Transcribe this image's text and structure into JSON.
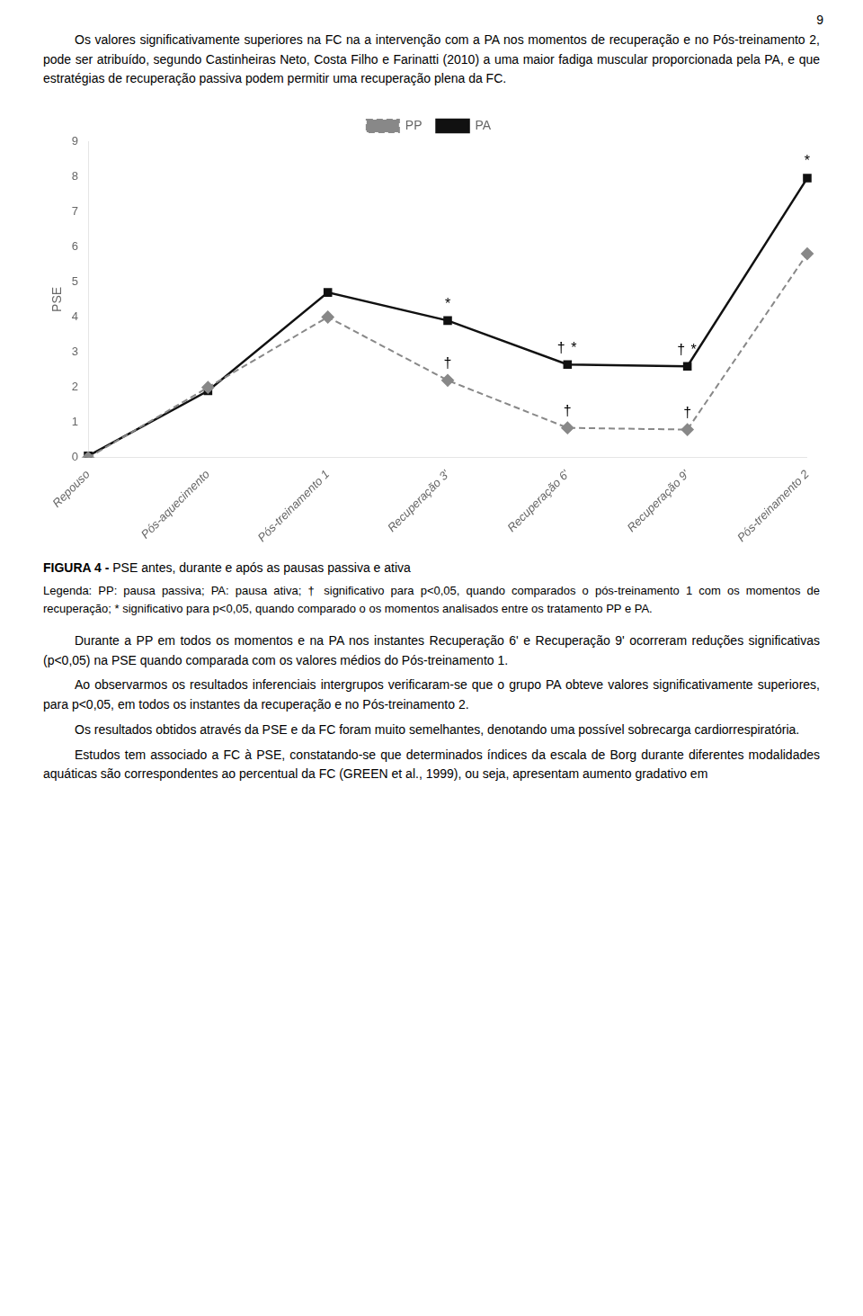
{
  "page_number": "9",
  "paragraphs_before": [
    "Os valores significativamente superiores na FC na a intervenção com a PA nos momentos de recuperação e no Pós-treinamento 2, pode ser atribuído, segundo Castinheiras Neto, Costa Filho e Farinatti (2010) a uma maior fadiga muscular proporcionada pela PA, e que estratégias de recuperação passiva podem permitir uma recuperação plena da FC."
  ],
  "chart_data": {
    "type": "line",
    "categories": [
      "Repouso",
      "Pós-aquecimento",
      "Pós-treinamento 1",
      "Recuperação 3'",
      "Recuperação 6'",
      "Recuperação 9'",
      "Pós-treinamento 2"
    ],
    "series": [
      {
        "name": "PP",
        "color": "#888888",
        "line_style": "dashed",
        "marker": "diamond",
        "values": [
          0.0,
          2.0,
          4.0,
          2.2,
          0.85,
          0.8,
          5.8
        ]
      },
      {
        "name": "PA",
        "color": "#111111",
        "line_style": "solid",
        "marker": "square",
        "values": [
          0.05,
          1.9,
          4.7,
          3.9,
          2.65,
          2.6,
          7.95
        ]
      }
    ],
    "ylabel": "PSE",
    "ylim": [
      0,
      9
    ],
    "yticks": [
      0,
      1,
      2,
      3,
      4,
      5,
      6,
      7,
      8,
      9
    ],
    "grid": false,
    "legend": "top",
    "annotations": [
      {
        "category": "Recuperação 3'",
        "series": "PP",
        "text": "†"
      },
      {
        "category": "Recuperação 3'",
        "series": "PA",
        "text": "*"
      },
      {
        "category": "Recuperação 6'",
        "series": "PP",
        "text": "†"
      },
      {
        "category": "Recuperação 6'",
        "series": "PA",
        "text": "†"
      },
      {
        "category": "Recuperação 6'",
        "series": "PA",
        "text": "*"
      },
      {
        "category": "Recuperação 9'",
        "series": "PP",
        "text": "†"
      },
      {
        "category": "Recuperação 9'",
        "series": "PA",
        "text": "†"
      },
      {
        "category": "Recuperação 9'",
        "series": "PA",
        "text": "*"
      },
      {
        "category": "Pós-treinamento 2",
        "series": "PA",
        "text": "*"
      }
    ]
  },
  "caption_label": "FIGURA 4 -",
  "caption": "PSE antes, durante e após as pausas passiva e ativa",
  "note": "Legenda: PP: pausa passiva; PA: pausa ativa; † significativo para p<0,05, quando comparados o pós-treinamento 1 com os momentos de recuperação; * significativo para p<0,05, quando comparado o os momentos analisados entre os tratamento PP e PA.",
  "paragraphs_after": [
    "Durante a PP em todos os momentos e na PA nos instantes Recuperação 6' e Recuperação 9' ocorreram reduções significativas (p<0,05) na PSE quando comparada com os valores médios do Pós-treinamento 1.",
    "Ao observarmos os resultados inferenciais intergrupos verificaram-se que o grupo PA obteve valores significativamente superiores, para p<0,05, em todos os instantes da recuperação e no Pós-treinamento 2.",
    "Os resultados obtidos através da PSE e da FC foram muito semelhantes, denotando uma possível sobrecarga cardiorrespiratória.",
    "Estudos tem associado a FC à PSE, constatando-se que determinados índices da escala de Borg durante diferentes modalidades aquáticas são correspondentes ao percentual da FC (GREEN et al., 1999), ou seja, apresentam aumento gradativo em"
  ]
}
